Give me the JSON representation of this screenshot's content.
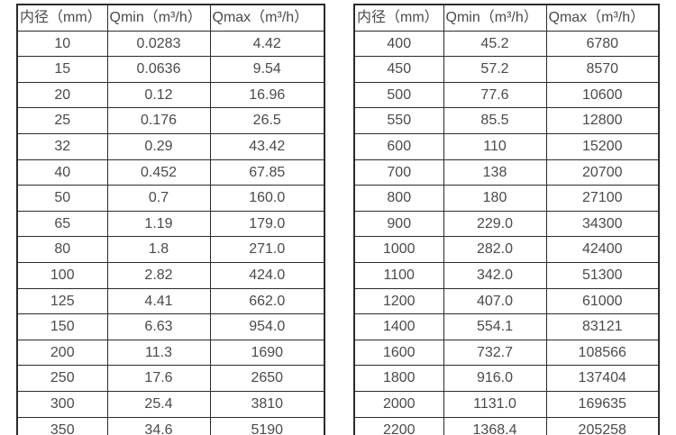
{
  "page": {
    "background_color": "#ffffff",
    "border_color": "#2b2b2b",
    "text_color": "#4a4a4a"
  },
  "tables": [
    {
      "name": "small-diameter-flow-table",
      "headers": [
        "内径（mm）",
        "Qmin（m³/h）",
        "Qmax（m³/h）"
      ],
      "rows": [
        [
          "10",
          "0.0283",
          "4.42"
        ],
        [
          "15",
          "0.0636",
          "9.54"
        ],
        [
          "20",
          "0.12",
          "16.96"
        ],
        [
          "25",
          "0.176",
          "26.5"
        ],
        [
          "32",
          "0.29",
          "43.42"
        ],
        [
          "40",
          "0.452",
          "67.85"
        ],
        [
          "50",
          "0.7",
          "160.0"
        ],
        [
          "65",
          "1.19",
          "179.0"
        ],
        [
          "80",
          "1.8",
          "271.0"
        ],
        [
          "100",
          "2.82",
          "424.0"
        ],
        [
          "125",
          "4.41",
          "662.0"
        ],
        [
          "150",
          "6.63",
          "954.0"
        ],
        [
          "200",
          "11.3",
          "1690"
        ],
        [
          "250",
          "17.6",
          "2650"
        ],
        [
          "300",
          "25.4",
          "3810"
        ],
        [
          "350",
          "34.6",
          "5190"
        ]
      ]
    },
    {
      "name": "large-diameter-flow-table",
      "headers": [
        "内径（mm）",
        "Qmin（m³/h）",
        "Qmax（m³/h）"
      ],
      "rows": [
        [
          "400",
          "45.2",
          "6780"
        ],
        [
          "450",
          "57.2",
          "8570"
        ],
        [
          "500",
          "77.6",
          "10600"
        ],
        [
          "550",
          "85.5",
          "12800"
        ],
        [
          "600",
          "110",
          "15200"
        ],
        [
          "700",
          "138",
          "20700"
        ],
        [
          "800",
          "180",
          "27100"
        ],
        [
          "900",
          "229.0",
          "34300"
        ],
        [
          "1000",
          "282.0",
          "42400"
        ],
        [
          "1100",
          "342.0",
          "51300"
        ],
        [
          "1200",
          "407.0",
          "61000"
        ],
        [
          "1400",
          "554.1",
          "83121"
        ],
        [
          "1600",
          "732.7",
          "108566"
        ],
        [
          "1800",
          "916.0",
          "137404"
        ],
        [
          "2000",
          "1131.0",
          "169635"
        ],
        [
          "2200",
          "1368.4",
          "205258"
        ]
      ]
    }
  ]
}
